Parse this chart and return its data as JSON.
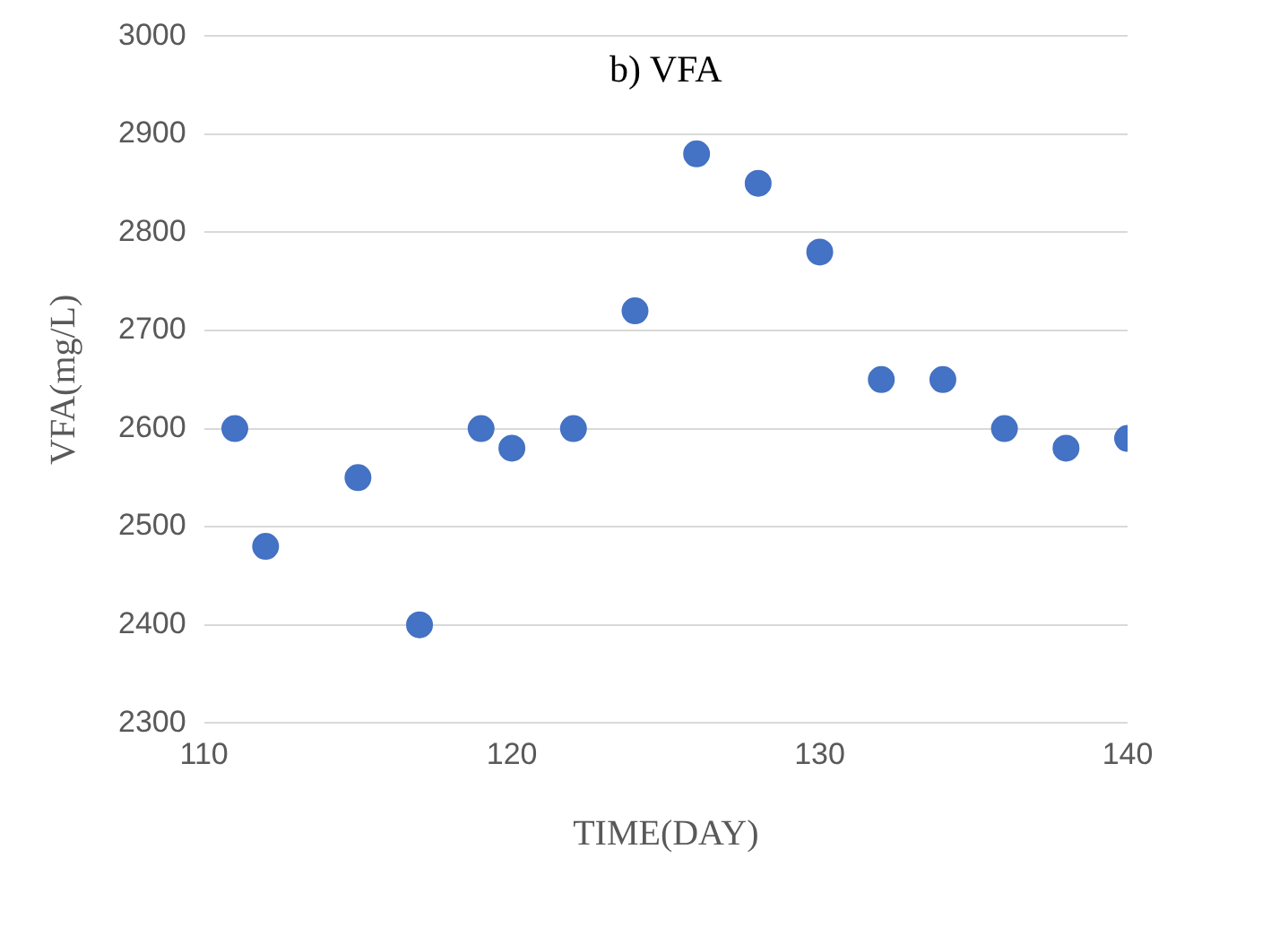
{
  "chart_data": {
    "type": "scatter",
    "title": "b) VFA",
    "xlabel": "TIME(DAY)",
    "ylabel": "VFA(mg/L)",
    "x": [
      111,
      112,
      115,
      117,
      119,
      120,
      122,
      124,
      126,
      128,
      130,
      132,
      134,
      136,
      138,
      140
    ],
    "values": [
      2600,
      2480,
      2550,
      2400,
      2600,
      2580,
      2600,
      2720,
      2880,
      2850,
      2780,
      2650,
      2650,
      2600,
      2580,
      2590
    ],
    "color": "#4472c4",
    "marker": "circle",
    "xlim": [
      110,
      140
    ],
    "xticks": [
      110,
      120,
      130,
      140
    ],
    "ylim": [
      2300,
      3000
    ],
    "yticks": [
      2300,
      2400,
      2500,
      2600,
      2700,
      2800,
      2900,
      3000
    ],
    "grid": "y",
    "legend": false
  }
}
